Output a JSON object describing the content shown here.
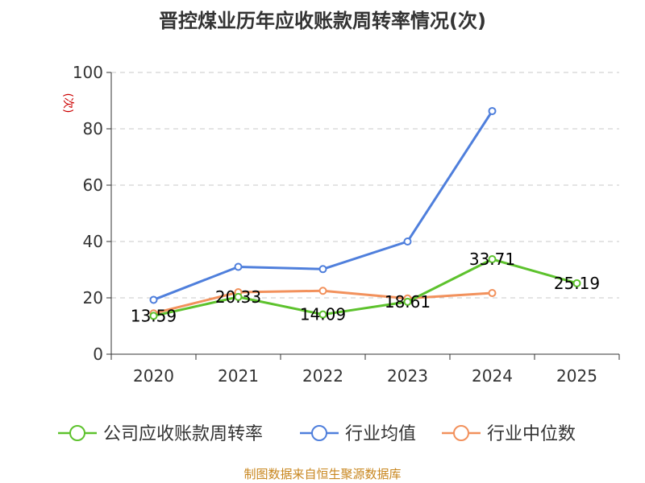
{
  "chart_data": {
    "type": "line",
    "title": "晋控煤业历年应收账款周转率情况(次)",
    "ylabel": "(次)",
    "xlabel": "",
    "ylim": [
      0,
      100
    ],
    "yticks": [
      0,
      20,
      40,
      60,
      80,
      100
    ],
    "categories": [
      "2020",
      "2021",
      "2022",
      "2023",
      "2024",
      "2025"
    ],
    "grid": true,
    "legend_position": "bottom",
    "series": [
      {
        "name": "公司应收账款周转率",
        "color": "#5dc22d",
        "values": [
          13.59,
          20.33,
          14.09,
          18.61,
          33.71,
          25.19
        ],
        "labels": [
          "13.59",
          "20.33",
          "14.09",
          "18.61",
          "33.71",
          "25.19"
        ]
      },
      {
        "name": "行业均值",
        "color": "#4f7fdc",
        "values": [
          19.3,
          31.0,
          30.2,
          40.0,
          86.3,
          null
        ]
      },
      {
        "name": "行业中位数",
        "color": "#f2915c",
        "values": [
          14.5,
          22.0,
          22.5,
          19.8,
          21.7,
          null
        ]
      }
    ]
  },
  "footer": {
    "source": "制图数据来自恒生聚源数据库"
  }
}
